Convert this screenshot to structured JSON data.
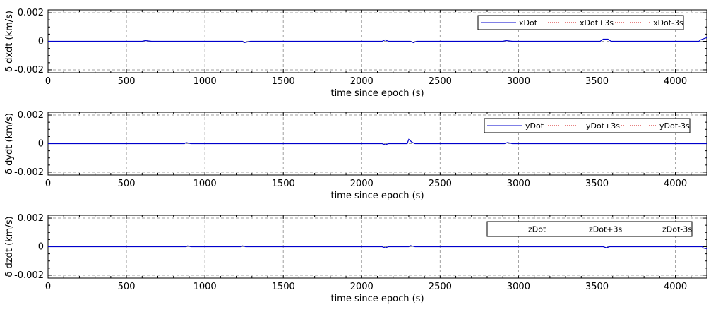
{
  "chart_data": [
    {
      "type": "line",
      "xlabel": "time since epoch (s)",
      "ylabel": "δ dxdt (km/s)",
      "xlim": [
        0,
        4200
      ],
      "ylim": [
        -0.0022,
        0.0022
      ],
      "xticks": [
        0,
        500,
        1000,
        1500,
        2000,
        2500,
        3000,
        3500,
        4000
      ],
      "xtick_labels": [
        "0",
        "500",
        "1000",
        "1500",
        "2000",
        "2500",
        "3000",
        "3500",
        "4000"
      ],
      "yticks": [
        -0.002,
        0,
        0.002
      ],
      "ytick_labels": [
        "-0.002",
        "0",
        "0.002"
      ],
      "grid": true,
      "legend": "top-right",
      "series": [
        {
          "name": "xDot",
          "color": "#0000cc",
          "style": "solid",
          "x": [
            0,
            600,
            620,
            660,
            1240,
            1250,
            1290,
            2130,
            2150,
            2170,
            2310,
            2330,
            2350,
            2900,
            2920,
            2960,
            3520,
            3540,
            3570,
            3590,
            4150,
            4160,
            4190,
            4200
          ],
          "y": [
            0,
            0,
            5e-05,
            0,
            0,
            -0.0001,
            0,
            0,
            0.0001,
            0,
            0,
            -0.0001,
            0,
            0,
            5e-05,
            0,
            0,
            0.00015,
            0.00015,
            0,
            0,
            0.0001,
            0.00022,
            0.00025
          ]
        },
        {
          "name": "xDot+3s",
          "color": "#cc0000",
          "style": "dotted",
          "x": [],
          "y": []
        },
        {
          "name": "xDot-3s",
          "color": "#cc0000",
          "style": "dotted",
          "x": [],
          "y": []
        }
      ]
    },
    {
      "type": "line",
      "xlabel": "time since epoch (s)",
      "ylabel": "δ dydt (km/s)",
      "xlim": [
        0,
        4200
      ],
      "ylim": [
        -0.0022,
        0.0022
      ],
      "xticks": [
        0,
        500,
        1000,
        1500,
        2000,
        2500,
        3000,
        3500,
        4000
      ],
      "xtick_labels": [
        "0",
        "500",
        "1000",
        "1500",
        "2000",
        "2500",
        "3000",
        "3500",
        "4000"
      ],
      "yticks": [
        -0.002,
        0,
        0.002
      ],
      "ytick_labels": [
        "-0.002",
        "0",
        "0.002"
      ],
      "grid": true,
      "legend": "top-right",
      "series": [
        {
          "name": "yDot",
          "color": "#0000cc",
          "style": "solid",
          "x": [
            0,
            870,
            880,
            910,
            2130,
            2150,
            2170,
            2290,
            2300,
            2320,
            2340,
            2910,
            2930,
            2960,
            4200
          ],
          "y": [
            0,
            0,
            8e-05,
            0,
            0,
            -8e-05,
            0,
            0,
            0.0003,
            0.0001,
            0,
            0,
            8e-05,
            0,
            0
          ]
        },
        {
          "name": "yDot+3s",
          "color": "#cc0000",
          "style": "dotted",
          "x": [],
          "y": []
        },
        {
          "name": "yDot-3s",
          "color": "#cc0000",
          "style": "dotted",
          "x": [],
          "y": []
        }
      ]
    },
    {
      "type": "line",
      "xlabel": "time since epoch (s)",
      "ylabel": "δ dzdt (km/s)",
      "xlim": [
        0,
        4200
      ],
      "ylim": [
        -0.0022,
        0.0022
      ],
      "xticks": [
        0,
        500,
        1000,
        1500,
        2000,
        2500,
        3000,
        3500,
        4000
      ],
      "xtick_labels": [
        "0",
        "500",
        "1000",
        "1500",
        "2000",
        "2500",
        "3000",
        "3500",
        "4000"
      ],
      "yticks": [
        -0.002,
        0,
        0.002
      ],
      "ytick_labels": [
        "-0.002",
        "0",
        "0.002"
      ],
      "grid": true,
      "legend": "top-right",
      "series": [
        {
          "name": "zDot",
          "color": "#0000cc",
          "style": "solid",
          "x": [
            0,
            880,
            890,
            910,
            1230,
            1240,
            1260,
            2130,
            2150,
            2170,
            2300,
            2310,
            2340,
            3540,
            3560,
            3580,
            4170,
            4180,
            4200
          ],
          "y": [
            0,
            0,
            6e-05,
            0,
            0,
            6e-05,
            0,
            0,
            -8e-05,
            0,
            0,
            8e-05,
            0,
            0,
            -8e-05,
            0,
            0,
            -0.0001,
            -0.00015
          ]
        },
        {
          "name": "zDot+3s",
          "color": "#cc0000",
          "style": "dotted",
          "x": [],
          "y": []
        },
        {
          "name": "zDot-3s",
          "color": "#cc0000",
          "style": "dotted",
          "x": [],
          "y": []
        }
      ]
    }
  ]
}
